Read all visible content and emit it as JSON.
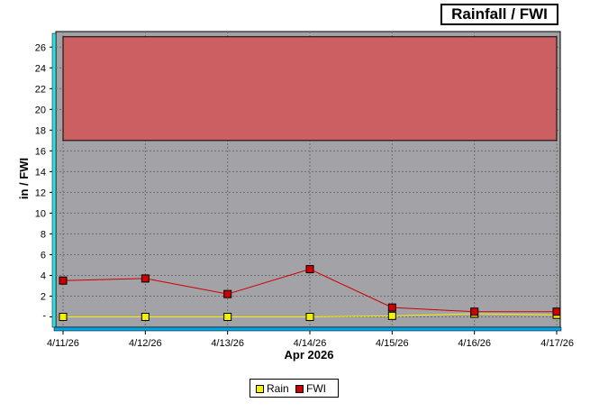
{
  "chart_data": {
    "type": "line",
    "title": "Rainfall / FWI",
    "xlabel": "Apr 2026",
    "ylabel": "in / FWI",
    "categories": [
      "4/11/26",
      "4/12/26",
      "4/13/26",
      "4/14/26",
      "4/15/26",
      "4/16/26",
      "4/17/26"
    ],
    "y_ticks": [
      2,
      4,
      6,
      8,
      10,
      12,
      14,
      16,
      18,
      20,
      22,
      24,
      26
    ],
    "ylim": [
      -1,
      27.5
    ],
    "grid": true,
    "legend_position": "bottom",
    "threshold_band": {
      "from": 17,
      "to": 27,
      "color": "#cb5f62"
    },
    "series": [
      {
        "name": "Rain",
        "color": "#f5f200",
        "values": [
          0,
          0,
          0,
          0,
          0.1,
          0.3,
          0.2
        ]
      },
      {
        "name": "FWI",
        "color": "#cc0000",
        "values": [
          3.5,
          3.7,
          2.2,
          4.6,
          0.9,
          0.5,
          0.5
        ]
      }
    ]
  }
}
